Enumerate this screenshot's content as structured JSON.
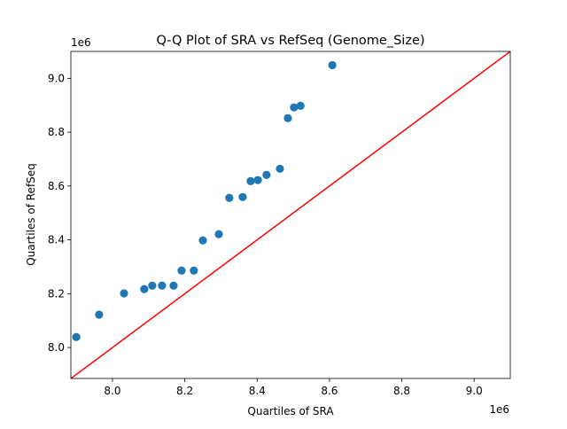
{
  "chart_data": {
    "type": "scatter",
    "title": "Q-Q Plot of SRA vs RefSeq (Genome_Size)",
    "xlabel": "Quartiles of SRA",
    "ylabel": "Quartiles of RefSeq",
    "x_offset_label": "1e6",
    "y_offset_label": "1e6",
    "xlim": [
      7.885,
      9.1
    ],
    "ylim": [
      7.885,
      9.1
    ],
    "xticks": [
      8.0,
      8.2,
      8.4,
      8.6,
      8.8,
      9.0
    ],
    "xtick_labels": [
      "8.0",
      "8.2",
      "8.4",
      "8.6",
      "8.8",
      "9.0"
    ],
    "yticks": [
      8.0,
      8.2,
      8.4,
      8.6,
      8.8,
      9.0
    ],
    "ytick_labels": [
      "8.0",
      "8.2",
      "8.4",
      "8.6",
      "8.8",
      "9.0"
    ],
    "grid": false,
    "point_color": "#1f77b4",
    "reference_line": {
      "type": "y=x",
      "color": "#ff0000"
    },
    "points": [
      {
        "x": 7.9,
        "y": 8.039
      },
      {
        "x": 7.963,
        "y": 8.122
      },
      {
        "x": 8.032,
        "y": 8.201
      },
      {
        "x": 8.088,
        "y": 8.217
      },
      {
        "x": 8.11,
        "y": 8.23
      },
      {
        "x": 8.137,
        "y": 8.23
      },
      {
        "x": 8.169,
        "y": 8.23
      },
      {
        "x": 8.191,
        "y": 8.286
      },
      {
        "x": 8.225,
        "y": 8.286
      },
      {
        "x": 8.25,
        "y": 8.398
      },
      {
        "x": 8.294,
        "y": 8.421
      },
      {
        "x": 8.323,
        "y": 8.556
      },
      {
        "x": 8.36,
        "y": 8.559
      },
      {
        "x": 8.382,
        "y": 8.618
      },
      {
        "x": 8.402,
        "y": 8.622
      },
      {
        "x": 8.426,
        "y": 8.641
      },
      {
        "x": 8.463,
        "y": 8.664
      },
      {
        "x": 8.485,
        "y": 8.852
      },
      {
        "x": 8.502,
        "y": 8.892
      },
      {
        "x": 8.52,
        "y": 8.898
      },
      {
        "x": 8.608,
        "y": 9.049
      }
    ]
  }
}
